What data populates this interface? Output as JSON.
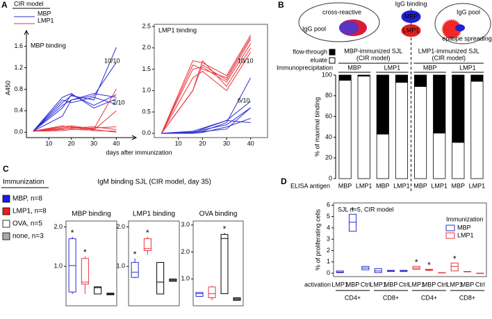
{
  "chart_data": [
    {
      "type": "line",
      "panel": "A",
      "legend_title": "CIR model",
      "title": "MBP binding",
      "ylabel": "A450",
      "xlabel": "days after immunization",
      "x": [
        3,
        16,
        20,
        30,
        40
      ],
      "xlim": [
        0,
        47
      ],
      "xticks": [
        10,
        20,
        30,
        40
      ],
      "ylim": [
        -0.1,
        1.75
      ],
      "yticks": [
        {
          "value": 0,
          "label": "0.0"
        },
        0.4,
        0.8,
        1.2,
        1.6
      ],
      "series": [
        {
          "name": "MBP",
          "color": "#2b2bd1",
          "values": [
            [
              0.02,
              0.55,
              0.68,
              0.6,
              1.58
            ],
            [
              0.02,
              0.45,
              0.7,
              0.5,
              0.7
            ],
            [
              0.02,
              0.3,
              0.6,
              0.72,
              0.65
            ],
            [
              0.02,
              0.6,
              0.55,
              0.65,
              0.52
            ],
            [
              0.02,
              0.65,
              0.72,
              0.45,
              0.62
            ],
            [
              0.02,
              0.5,
              0.6,
              0.68,
              1.3
            ]
          ]
        },
        {
          "name": "LMP1",
          "color": "#e8343a",
          "values": [
            [
              0.02,
              0.08,
              0.1,
              0.05,
              0.0
            ],
            [
              0.02,
              0.05,
              0.08,
              0.1,
              0.05
            ],
            [
              0.02,
              0.1,
              0.12,
              0.06,
              0.8
            ],
            [
              0.02,
              0.03,
              0.05,
              0.04,
              0.4
            ],
            [
              0.02,
              0.12,
              0.09,
              0.03,
              0.02
            ],
            [
              0.02,
              0.06,
              0.07,
              0.08,
              0.1
            ]
          ]
        }
      ],
      "annotations": [
        {
          "text": "10/10",
          "color": "#2b2bd1"
        },
        {
          "text": "2/10",
          "color": "#e8343a"
        }
      ]
    },
    {
      "type": "line",
      "title": "LMP1 binding",
      "x": [
        3,
        16,
        20,
        30,
        40
      ],
      "xlim": [
        0,
        47
      ],
      "xticks": [
        10,
        20,
        30,
        40
      ],
      "ylim": [
        -0.1,
        2.55
      ],
      "yticks": [
        {
          "value": 0,
          "label": "0.0"
        },
        0.5,
        {
          "value": 1,
          "label": "1.0"
        },
        1.5,
        {
          "value": 2,
          "label": "2.0"
        },
        2.5
      ],
      "series": [
        {
          "name": "LMP1",
          "color": "#e8343a",
          "values": [
            [
              0.0,
              1.0,
              1.6,
              1.25,
              2.2
            ],
            [
              0.0,
              1.6,
              1.5,
              1.3,
              2.25
            ],
            [
              0.0,
              1.0,
              1.7,
              1.1,
              2.0
            ],
            [
              0.0,
              1.5,
              1.55,
              1.2,
              2.1
            ],
            [
              0.0,
              1.7,
              1.65,
              1.35,
              2.3
            ],
            [
              0.0,
              1.3,
              1.45,
              1.0,
              1.9
            ]
          ]
        },
        {
          "name": "MBP",
          "color": "#2b2bd1",
          "values": [
            [
              0.0,
              0.02,
              0.05,
              0.25,
              1.3
            ],
            [
              0.0,
              0.01,
              0.1,
              0.3,
              0.75
            ],
            [
              0.0,
              0.03,
              0.08,
              0.2,
              0.6
            ],
            [
              0.0,
              0.0,
              0.02,
              0.15,
              0.35
            ],
            [
              0.0,
              0.05,
              0.12,
              0.3,
              0.25
            ],
            [
              0.0,
              0.02,
              0.04,
              0.1,
              0.6
            ]
          ]
        }
      ],
      "annotations": [
        {
          "text": "10/10",
          "color": "#e8343a"
        },
        {
          "text": "6/10",
          "color": "#2b2bd1"
        }
      ]
    },
    {
      "type": "stacked_bar",
      "panel": "B",
      "ylabel": "% of maximal binding",
      "xlabel": "ELISA antigen",
      "diagram": {
        "left_title": "cross-reactive",
        "left_pool": "IgG pool",
        "middle_title": "IgG binding",
        "middle_top": "MBP",
        "middle_bottom": "LMP1",
        "right_pool": "IgG pool",
        "right_title": "epitope spreading"
      },
      "groups": [
        [
          "MBP-immunized SJL",
          "(CIR model)"
        ],
        [
          "LMP1-immunized SJL",
          "(CIR model)"
        ]
      ],
      "group_colors": [
        "#2b2bd1",
        "#e8343a"
      ],
      "ip_label": "Immunoprecipitation",
      "ip_groups": [
        "MBP",
        "LMP1",
        "MBP",
        "LMP1"
      ],
      "categories": [
        "MBP",
        "LMP1",
        "MBP",
        "LMP1",
        "MBP",
        "LMP1",
        "MBP",
        "LMP1"
      ],
      "ylim": [
        0,
        100
      ],
      "yticks": [
        0,
        20,
        40,
        60,
        80,
        100
      ],
      "series": [
        {
          "name": "eluate",
          "color": "#ffffff",
          "values": [
            95,
            99,
            43,
            93,
            89,
            44,
            35,
            94
          ]
        },
        {
          "name": "flow-through",
          "color": "#000000",
          "values": [
            5,
            1,
            57,
            7,
            11,
            56,
            65,
            6
          ]
        }
      ]
    },
    {
      "type": "box",
      "panel": "C",
      "supertitle": "IgM binding SJL (CIR model, day 35)",
      "title": "MBP binding",
      "legend_title": "Immunization",
      "legend": [
        {
          "label": "MBP, n=8",
          "color": "#1a1aee"
        },
        {
          "label": "LMP1, n=8",
          "color": "#ee1c1c"
        },
        {
          "label": "OVA, n=5",
          "color": "#ffffff"
        },
        {
          "label": "none, n=3",
          "color": "#aaaaaa"
        }
      ],
      "ylim": [
        0,
        2.15
      ],
      "yticks": [
        {
          "value": 1,
          "label": "1.0"
        },
        {
          "value": 2,
          "label": "2.0"
        }
      ],
      "colors": [
        "#2b2bd1",
        "#e8343a",
        "#000000",
        "#000000"
      ],
      "fills": [
        "#ffffff",
        "#ffffff",
        "#ffffff",
        "#aaaaaa"
      ],
      "boxes": [
        {
          "min": 0.3,
          "q1": 0.35,
          "median": 1.02,
          "q3": 1.7,
          "max": 1.75,
          "annotation": "*"
        },
        {
          "min": 0.3,
          "q1": 0.55,
          "median": 0.6,
          "q3": 1.2,
          "max": 1.25,
          "annotation": "*"
        },
        {
          "min": 0.3,
          "q1": 0.3,
          "median": 0.46,
          "q3": 0.48,
          "max": 0.48
        },
        {
          "min": 0.28,
          "q1": 0.28,
          "median": 0.3,
          "q3": 0.32,
          "max": 0.32
        }
      ]
    },
    {
      "type": "box",
      "title": "LMP1 binding",
      "ylim": [
        0,
        2.15
      ],
      "yticks": [
        {
          "value": 1,
          "label": "1.0"
        },
        {
          "value": 2,
          "label": "2.0"
        }
      ],
      "colors": [
        "#2b2bd1",
        "#e8343a",
        "#000000",
        "#000000"
      ],
      "fills": [
        "#ffffff",
        "#ffffff",
        "#ffffff",
        "#aaaaaa"
      ],
      "boxes": [
        {
          "min": 0.7,
          "q1": 0.72,
          "median": 0.85,
          "q3": 1.1,
          "max": 1.2,
          "annotation": "*"
        },
        {
          "min": 1.3,
          "q1": 1.4,
          "median": 1.45,
          "q3": 1.7,
          "max": 1.75,
          "annotation": "*"
        },
        {
          "min": 0.3,
          "q1": 0.3,
          "median": 0.6,
          "q3": 1.1,
          "max": 1.1
        },
        {
          "min": 0.62,
          "q1": 0.62,
          "median": 0.65,
          "q3": 0.68,
          "max": 0.68
        }
      ]
    },
    {
      "type": "box",
      "title": "OVA binding",
      "ylim": [
        0,
        3.15
      ],
      "yticks": [
        {
          "value": 1,
          "label": "1.0"
        },
        {
          "value": 2,
          "label": "2.0"
        },
        {
          "value": 3,
          "label": "3.0"
        }
      ],
      "colors": [
        "#2b2bd1",
        "#e8343a",
        "#000000",
        "#000000"
      ],
      "fills": [
        "#ffffff",
        "#ffffff",
        "#ffffff",
        "#aaaaaa"
      ],
      "boxes": [
        {
          "min": 0.35,
          "q1": 0.35,
          "median": 0.45,
          "q3": 0.5,
          "max": 0.5
        },
        {
          "min": 0.2,
          "q1": 0.3,
          "median": 0.45,
          "q3": 0.7,
          "max": 0.75
        },
        {
          "min": 0.45,
          "q1": 0.45,
          "median": 2.5,
          "q3": 2.65,
          "max": 2.7,
          "annotation": "*"
        },
        {
          "min": 0.2,
          "q1": 0.2,
          "median": 0.25,
          "q3": 0.3,
          "max": 0.3
        }
      ]
    },
    {
      "type": "box",
      "panel": "D",
      "ylabel": "% of proliferating cells",
      "annotation": "SJL n=5, CIR model",
      "legend_title": "Immunization",
      "xlabel": "activation",
      "categories": [
        "LMP1",
        "MBP",
        "Ctrl",
        "LMP1",
        "MBP",
        "Ctrl",
        "LMP1",
        "MBP",
        "Ctrl",
        "LMP1",
        "MBP",
        "Ctrl"
      ],
      "groups": [
        "CD4+",
        "CD8+",
        "CD4+",
        "CD8+"
      ],
      "ylim": [
        -0.3,
        6.2
      ],
      "yticks": [
        0,
        1,
        2,
        3,
        4,
        5,
        6
      ],
      "series": [
        {
          "name": "MBP",
          "color": "#2b2bd1",
          "values": [
            {
              "min": 0.05,
              "q1": 0.05,
              "median": 0.1,
              "q3": 0.2,
              "max": 0.2
            },
            {
              "min": 3.7,
              "q1": 3.7,
              "median": 4.5,
              "q3": 5.2,
              "max": 5.2,
              "annotation": "*"
            },
            {
              "min": 0.3,
              "q1": 0.3,
              "median": 0.45,
              "q3": 0.6,
              "max": 0.6
            },
            {
              "min": 0.05,
              "q1": 0.05,
              "median": 0.2,
              "q3": 0.4,
              "max": 0.4
            },
            {
              "min": 0.15,
              "q1": 0.15,
              "median": 0.2,
              "q3": 0.25,
              "max": 0.25
            },
            {
              "min": 0.15,
              "q1": 0.15,
              "median": 0.2,
              "q3": 0.25,
              "max": 0.25
            },
            null,
            null,
            null,
            null,
            null,
            null
          ]
        },
        {
          "name": "LMP1",
          "color": "#e8343a",
          "values": [
            null,
            null,
            null,
            null,
            null,
            null,
            {
              "min": 0.35,
              "q1": 0.35,
              "median": 0.45,
              "q3": 0.6,
              "max": 0.6,
              "annotation": "*"
            },
            {
              "min": 0.2,
              "q1": 0.25,
              "median": 0.3,
              "q3": 0.35,
              "max": 0.35,
              "annotation": "*"
            },
            {
              "min": 0.05,
              "q1": 0.05,
              "median": 0.05,
              "q3": 0.05,
              "max": 0.05
            },
            {
              "min": 0.2,
              "q1": 0.2,
              "median": 0.6,
              "q3": 0.9,
              "max": 0.9,
              "annotation": "*"
            },
            {
              "min": 0.15,
              "q1": 0.15,
              "median": 0.15,
              "q3": 0.15,
              "max": 0.15
            },
            {
              "min": 0.0,
              "q1": 0.0,
              "median": 0.0,
              "q3": 0.0,
              "max": 0.0
            }
          ]
        }
      ]
    }
  ]
}
